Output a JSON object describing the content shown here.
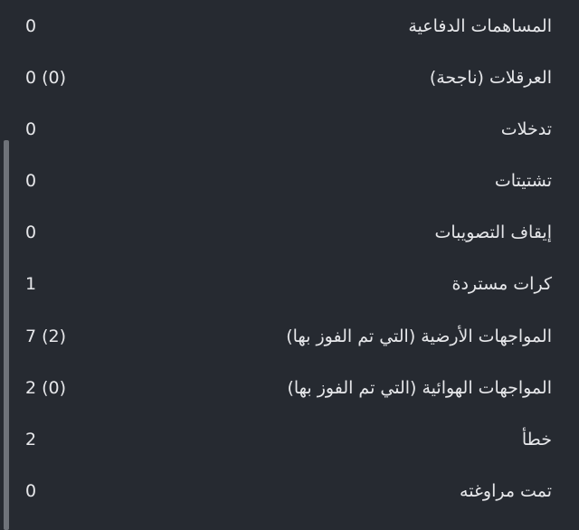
{
  "stats": [
    {
      "label": "المساهمات الدفاعية",
      "value": "0"
    },
    {
      "label": "العرقلات (ناجحة)",
      "value": "0 (0)"
    },
    {
      "label": "تدخلات",
      "value": "0"
    },
    {
      "label": "تشتيتات",
      "value": "0"
    },
    {
      "label": "إيقاف التصويبات",
      "value": "0"
    },
    {
      "label": "كرات مستردة",
      "value": "1"
    },
    {
      "label": "المواجهات الأرضية (التي تم الفوز بها)",
      "value": "7 (2)"
    },
    {
      "label": "المواجهات الهوائية (التي تم الفوز بها)",
      "value": "2 (0)"
    },
    {
      "label": "خطأ",
      "value": "2"
    },
    {
      "label": "تمت مراوغته",
      "value": "0"
    }
  ],
  "colors": {
    "background": "#262a31",
    "text": "#e6e7ea",
    "scrollbar": "#6f737a"
  }
}
